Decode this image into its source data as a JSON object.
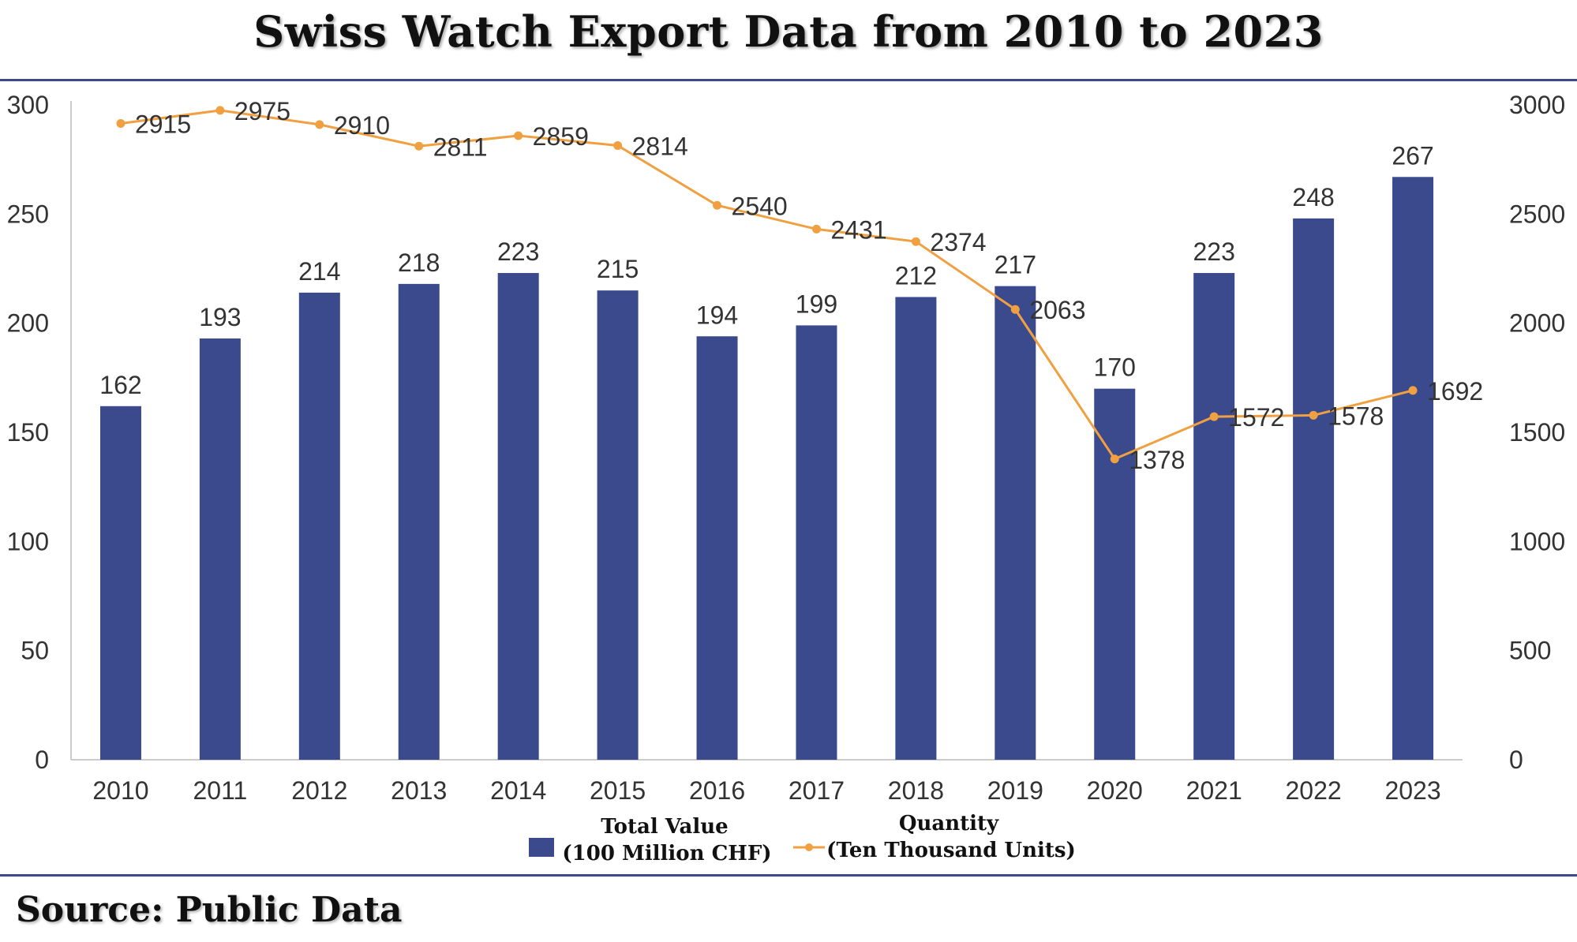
{
  "title": "Swiss Watch Export Data from 2010 to 2023",
  "source": "Source: Public Data",
  "colors": {
    "bar": "#3b4a8c",
    "line": "#f0a040",
    "rule": "#3b4a8c"
  },
  "chart_data": {
    "type": "bar",
    "categories": [
      "2010",
      "2011",
      "2012",
      "2013",
      "2014",
      "2015",
      "2016",
      "2017",
      "2018",
      "2019",
      "2020",
      "2021",
      "2022",
      "2023"
    ],
    "series": [
      {
        "name": "Total Value (100 Million CHF)",
        "legend_lines": [
          "Total Value",
          "(100 Million CHF)"
        ],
        "type": "bar",
        "axis": "left",
        "values": [
          162,
          193,
          214,
          218,
          223,
          215,
          194,
          199,
          212,
          217,
          170,
          223,
          248,
          267
        ],
        "labels": [
          "162",
          "193",
          "214",
          "218",
          "223",
          "215",
          "194",
          "199",
          "212",
          "217",
          "170",
          "223",
          "248",
          "267"
        ]
      },
      {
        "name": "Quantity (Ten Thousand Units)",
        "legend_lines": [
          "Quantity",
          "(Ten Thousand Units)"
        ],
        "type": "line",
        "axis": "right",
        "values": [
          2915,
          2975,
          2910,
          2811,
          2859,
          2814,
          2540,
          2431,
          2374,
          2063,
          1378,
          1572,
          1578,
          1692
        ],
        "labels": [
          "2915",
          "2975",
          "2910",
          "2811",
          "2859",
          "2814",
          "2540",
          "2431",
          "2374",
          "2063",
          "1378",
          "1572",
          "1578",
          "1692"
        ]
      }
    ],
    "left_axis": {
      "ylim": [
        0,
        300
      ],
      "ticks": [
        "0",
        "50",
        "100",
        "150",
        "200",
        "250",
        "300"
      ]
    },
    "right_axis": {
      "ylim": [
        0,
        3000
      ],
      "ticks": [
        "0",
        "500",
        "1000",
        "1500",
        "2000",
        "2500",
        "3000"
      ]
    },
    "grid": false,
    "legend": "bottom-center"
  }
}
